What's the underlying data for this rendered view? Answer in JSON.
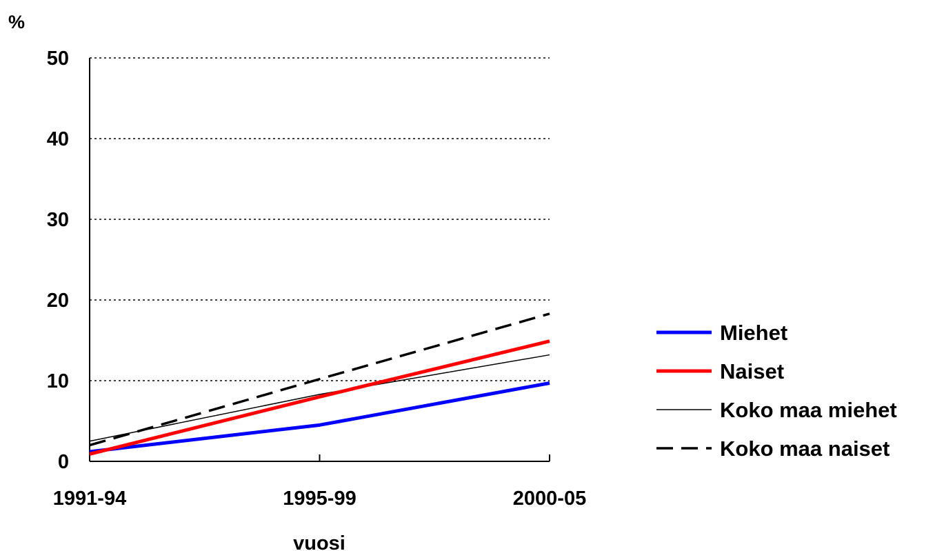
{
  "chart_data": {
    "type": "line",
    "ylabel": "%",
    "xlabel": "vuosi",
    "categories": [
      "1991-94",
      "1995-99",
      "2000-05"
    ],
    "ylim": [
      0,
      50
    ],
    "yticks": [
      0,
      10,
      20,
      30,
      40,
      50
    ],
    "grid": true,
    "legend_position": "right",
    "series": [
      {
        "name": "Miehet",
        "values": [
          1.2,
          4.5,
          9.7
        ],
        "color": "#0000ff",
        "style": "solid-thick"
      },
      {
        "name": "Naiset",
        "values": [
          0.9,
          8.0,
          14.9
        ],
        "color": "#ff0000",
        "style": "solid-thick"
      },
      {
        "name": "Koko maa miehet",
        "values": [
          2.5,
          8.3,
          13.2
        ],
        "color": "#000000",
        "style": "solid-thin"
      },
      {
        "name": "Koko maa naiset",
        "values": [
          2.0,
          10.2,
          18.3
        ],
        "color": "#000000",
        "style": "dashed"
      }
    ]
  }
}
